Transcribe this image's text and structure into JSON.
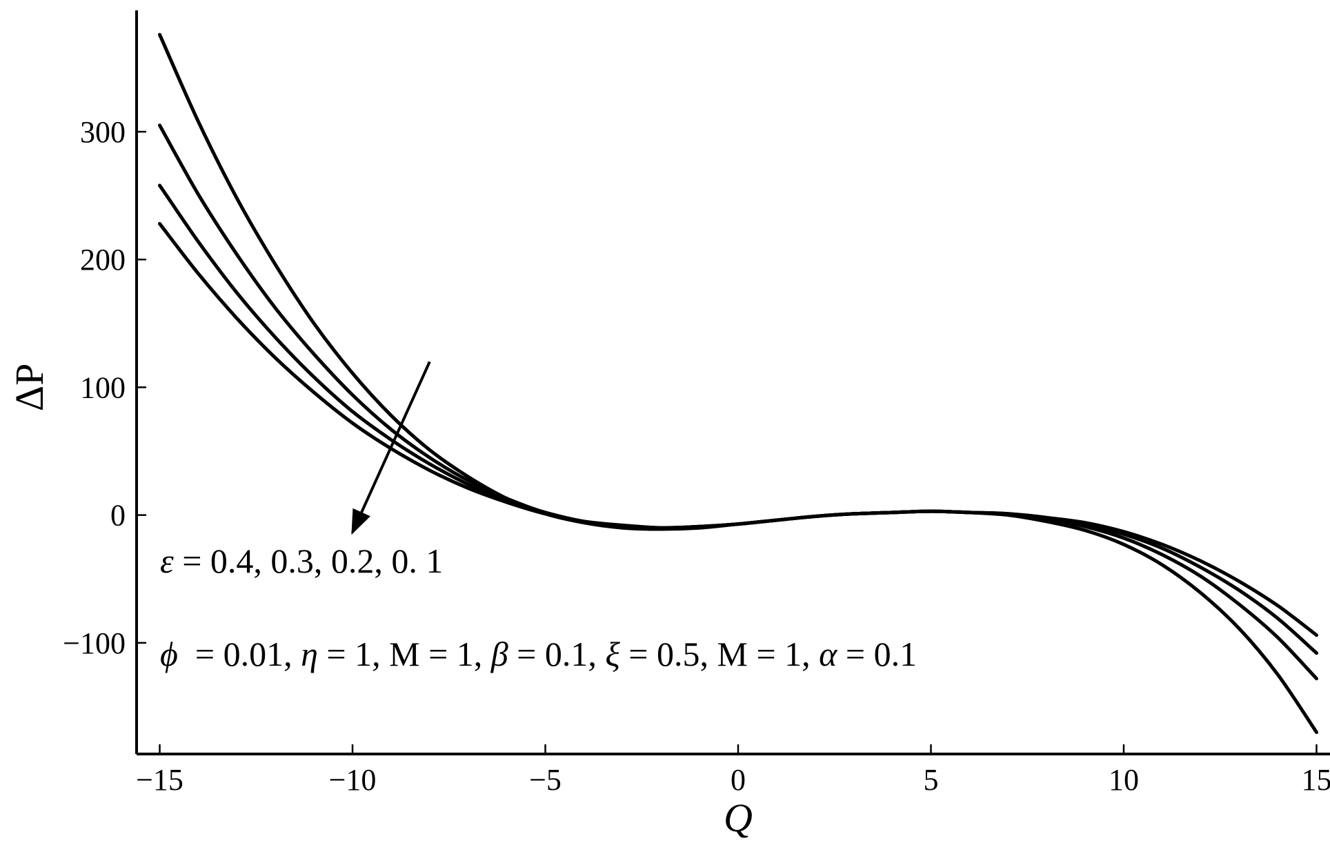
{
  "chart_data": {
    "type": "line",
    "title": "",
    "xlabel": "Q",
    "ylabel": "ΔP",
    "xlim": [
      -15.6,
      15.6
    ],
    "ylim": [
      -187,
      395
    ],
    "grid": false,
    "x_ticks": [
      {
        "value": -15,
        "label": "−15"
      },
      {
        "value": -10,
        "label": "−10"
      },
      {
        "value": -5,
        "label": "−5"
      },
      {
        "value": 0,
        "label": "0"
      },
      {
        "value": 5,
        "label": "5"
      },
      {
        "value": 10,
        "label": "10"
      },
      {
        "value": 15,
        "label": "15"
      }
    ],
    "y_ticks": [
      {
        "value": -100,
        "label": "−100"
      },
      {
        "value": 0,
        "label": "0"
      },
      {
        "value": 100,
        "label": "100"
      },
      {
        "value": 200,
        "label": "200"
      },
      {
        "value": 300,
        "label": "300"
      }
    ],
    "x": [
      -15,
      -14,
      -13,
      -12,
      -11,
      -10,
      -9,
      -8,
      -7,
      -6,
      -5,
      -4,
      -3,
      -2,
      -1,
      0,
      1,
      2,
      3,
      4,
      5,
      6,
      7,
      8,
      9,
      10,
      11,
      12,
      13,
      14,
      15
    ],
    "series": [
      {
        "values": [
          376,
          308,
          248,
          196,
          150,
          111,
          78,
          51,
          30,
          13,
          1,
          -6,
          -10,
          -11,
          -10,
          -7,
          -4,
          -1,
          1,
          2,
          3,
          2,
          0,
          -5,
          -12,
          -23,
          -39,
          -61,
          -89,
          -125,
          -170
        ]
      },
      {
        "values": [
          305,
          251,
          204,
          162,
          126,
          94,
          67,
          45,
          27,
          13,
          2,
          -5,
          -9,
          -10,
          -9,
          -7,
          -4,
          -1,
          1,
          2,
          3,
          2,
          1,
          -3,
          -9,
          -18,
          -31,
          -48,
          -70,
          -96,
          -128
        ]
      },
      {
        "values": [
          258,
          214,
          174,
          139,
          108,
          81,
          59,
          40,
          24,
          11,
          2,
          -5,
          -8,
          -10,
          -9,
          -7,
          -4,
          -1,
          1,
          2,
          3,
          2,
          1,
          -2,
          -7,
          -15,
          -26,
          -41,
          -59,
          -81,
          -108
        ]
      },
      {
        "values": [
          228,
          189,
          154,
          123,
          96,
          72,
          52,
          35,
          21,
          10,
          1,
          -5,
          -8,
          -10,
          -9,
          -7,
          -4,
          -1,
          1,
          2,
          3,
          2,
          1,
          -2,
          -6,
          -13,
          -23,
          -36,
          -52,
          -71,
          -94
        ]
      }
    ],
    "arrow": {
      "from": {
        "x": -8,
        "y": 120
      },
      "to": {
        "x": -10,
        "y": 0
      }
    },
    "annotations": [
      {
        "kind": "parameter",
        "symbol": "ε",
        "text": " = 0.4, 0.3, 0.2, 0. 1"
      },
      {
        "kind": "parameter",
        "parts": [
          {
            "text": "ϕ",
            "italic": true
          },
          {
            "text": "  = 0.01, ",
            "italic": false
          },
          {
            "text": "η",
            "italic": true
          },
          {
            "text": " = 1, M = 1, ",
            "italic": false
          },
          {
            "text": "β",
            "italic": true
          },
          {
            "text": " = 0.1, ",
            "italic": false
          },
          {
            "text": "ξ",
            "italic": true
          },
          {
            "text": " = 0.5, M = 1, ",
            "italic": false
          },
          {
            "text": "α",
            "italic": true
          },
          {
            "text": " = 0.1",
            "italic": false
          }
        ]
      }
    ]
  }
}
